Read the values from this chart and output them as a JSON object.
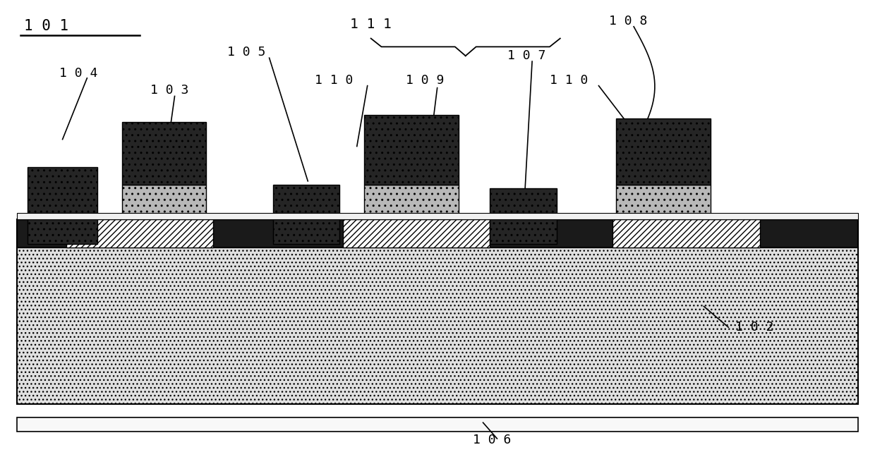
{
  "fig_width": 12.4,
  "fig_height": 6.41,
  "bg_color": "#ffffff",
  "label_101": "1 0 1",
  "label_102": "1 0 2",
  "label_103": "1 0 3",
  "label_104": "1 0 4",
  "label_105": "1 0 5",
  "label_106": "1 0 6",
  "label_107": "1 0 7",
  "label_108": "1 0 8",
  "label_109": "1 0 9",
  "label_110a": "1 1 0",
  "label_110b": "1 1 0",
  "label_111": "1 1 1",
  "font_size": 15,
  "font_size_sm": 13,
  "dark_color": "#1a1a1a",
  "light_color": "#c0c0c0",
  "substrate_color": "#d4d4d4",
  "passivation_color": "#f0f0f0",
  "hatch_diag": "////",
  "hatch_dot": ".."
}
